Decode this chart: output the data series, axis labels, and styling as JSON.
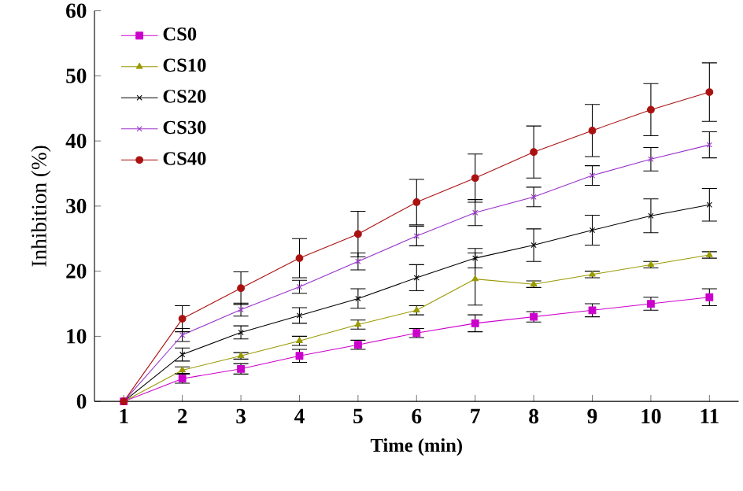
{
  "chart_data": {
    "type": "line",
    "xlabel": "Time (min)",
    "ylabel": "Inhibition (%)",
    "x": [
      1,
      2,
      3,
      4,
      5,
      6,
      7,
      8,
      9,
      10,
      11
    ],
    "xlim": [
      0.5,
      11.5
    ],
    "ylim": [
      0,
      60
    ],
    "xticks": [
      1,
      2,
      3,
      4,
      5,
      6,
      7,
      8,
      9,
      10,
      11
    ],
    "yticks": [
      0,
      10,
      20,
      30,
      40,
      50,
      60
    ],
    "legend": "top left",
    "grid": false,
    "series": [
      {
        "name": "CS0",
        "color": "#cc00cc",
        "marker": "square",
        "values": [
          0,
          3.5,
          5,
          7,
          8.7,
          10.5,
          12,
          13,
          14,
          15,
          16
        ],
        "errors": [
          null,
          0.7,
          0.8,
          1,
          0.7,
          0.7,
          1.3,
          0.8,
          1,
          1,
          1.3
        ]
      },
      {
        "name": "CS10",
        "color": "#999900",
        "marker": "triangle",
        "values": [
          0,
          4.8,
          7,
          9.3,
          11.8,
          14,
          18.8,
          18,
          19.5,
          21,
          22.5
        ],
        "errors": [
          null,
          0.5,
          0.5,
          0.7,
          0.7,
          0.7,
          4,
          0.5,
          0.5,
          0.5,
          0.5
        ]
      },
      {
        "name": "CS20",
        "color": "#000000",
        "marker": "cross",
        "values": [
          0,
          7.2,
          10.6,
          13.2,
          15.8,
          19,
          22,
          24,
          26.3,
          28.5,
          30.2
        ],
        "errors": [
          null,
          1,
          1,
          1.2,
          1.5,
          2,
          1.5,
          2.5,
          2.3,
          2.6,
          2.5
        ]
      },
      {
        "name": "CS30",
        "color": "#9933cc",
        "marker": "cross",
        "values": [
          0,
          10.2,
          14.1,
          17.6,
          21.5,
          25.4,
          29,
          31.4,
          34.7,
          37.2,
          39.4
        ],
        "errors": [
          null,
          1,
          1,
          1,
          1.3,
          1.5,
          2,
          1.5,
          1.5,
          1.8,
          2
        ]
      },
      {
        "name": "CS40",
        "color": "#aa1111",
        "marker": "circle",
        "values": [
          0,
          12.7,
          17.4,
          22,
          25.7,
          30.6,
          34.3,
          38.3,
          41.6,
          44.8,
          47.5
        ],
        "errors": [
          null,
          2,
          2.5,
          3,
          3.5,
          3.5,
          3.7,
          4,
          4,
          4,
          4.5
        ]
      }
    ]
  }
}
